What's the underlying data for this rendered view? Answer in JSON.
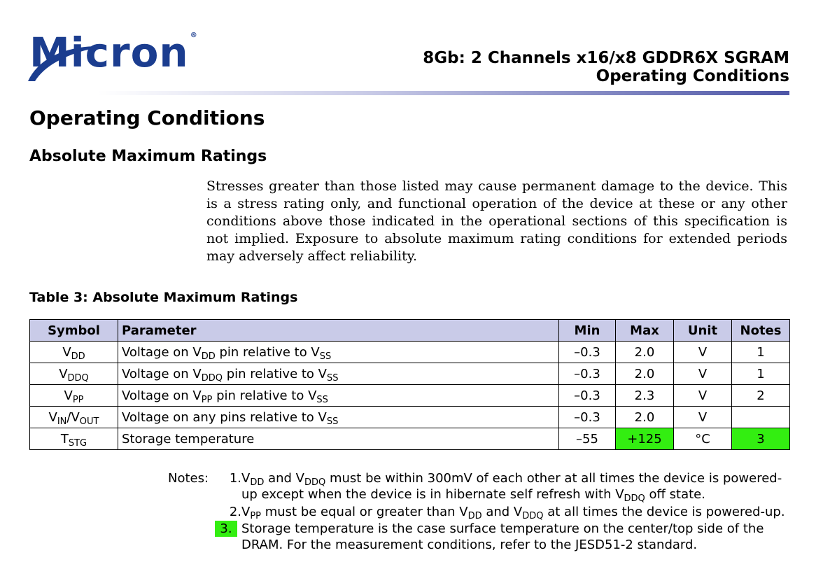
{
  "header": {
    "logo_text": "Micron",
    "logo_mark": "®",
    "doc_title_line1": "8Gb: 2 Channels x16/x8 GDDR6X SGRAM",
    "doc_title_line2": "Operating Conditions"
  },
  "section_title": "Operating Conditions",
  "subsection_title": "Absolute Maximum Ratings",
  "intro_text": "Stresses greater than those listed may cause permanent damage to the device. This is a stress rating only, and functional operation of the device at these or any other conditions above those indicated in the operational sections of this specification is not implied. Exposure to absolute maximum rating conditions for extended periods may adversely affect reliability.",
  "table": {
    "caption": "Table 3: Absolute Maximum Ratings",
    "headers": [
      "Symbol",
      "Parameter",
      "Min",
      "Max",
      "Unit",
      "Notes"
    ],
    "rows": [
      {
        "symbol": "V",
        "symbol_sub": "DD",
        "symbol_sep": "",
        "symbol2": "",
        "symbol2_sub": "",
        "param_a": "Voltage on V",
        "param_a_sub": "DD",
        "param_b": " pin relative to V",
        "param_b_sub": "SS",
        "min": "–0.3",
        "max": "2.0",
        "unit": "V",
        "notes": "1"
      },
      {
        "symbol": "V",
        "symbol_sub": "DDQ",
        "symbol_sep": "",
        "symbol2": "",
        "symbol2_sub": "",
        "param_a": "Voltage on V",
        "param_a_sub": "DDQ",
        "param_b": " pin relative to V",
        "param_b_sub": "SS",
        "min": "–0.3",
        "max": "2.0",
        "unit": "V",
        "notes": "1"
      },
      {
        "symbol": "V",
        "symbol_sub": "PP",
        "symbol_sep": "",
        "symbol2": "",
        "symbol2_sub": "",
        "param_a": "Voltage on V",
        "param_a_sub": "PP",
        "param_b": " pin relative to V",
        "param_b_sub": "SS",
        "min": "–0.3",
        "max": "2.3",
        "unit": "V",
        "notes": "2"
      },
      {
        "symbol": "V",
        "symbol_sub": "IN",
        "symbol_sep": "/",
        "symbol2": "V",
        "symbol2_sub": "OUT",
        "param_a": "Voltage on any pins relative to V",
        "param_a_sub": "SS",
        "param_b": "",
        "param_b_sub": "",
        "min": "–0.3",
        "max": "2.0",
        "unit": "V",
        "notes": ""
      },
      {
        "symbol": "T",
        "symbol_sub": "STG",
        "symbol_sep": "",
        "symbol2": "",
        "symbol2_sub": "",
        "param_a": "Storage temperature",
        "param_a_sub": "",
        "param_b": "",
        "param_b_sub": "",
        "min": "–55",
        "max": "+125",
        "unit": "°C",
        "notes": "3"
      }
    ],
    "highlight_color": "#33ee11",
    "header_bg": "#c9cbe8"
  },
  "notes": {
    "label": "Notes:",
    "items": [
      {
        "num": "1.",
        "parts": [
          "V",
          "DD",
          " and V",
          "DDQ",
          " must be within 300mV of each other at all times the device is powered-up except when the device is in hibernate self refresh with V",
          "DDQ",
          " off state."
        ]
      },
      {
        "num": "2.",
        "parts": [
          "V",
          "PP",
          " must be equal or greater than V",
          "DD",
          " and V",
          "DDQ",
          " at all times the device is powered-up."
        ]
      },
      {
        "num": "3.",
        "parts": [
          "Storage temperature is the case surface temperature on the center/top side of the DRAM. For the measurement conditions, refer to the JESD51-2 standard."
        ]
      }
    ]
  }
}
